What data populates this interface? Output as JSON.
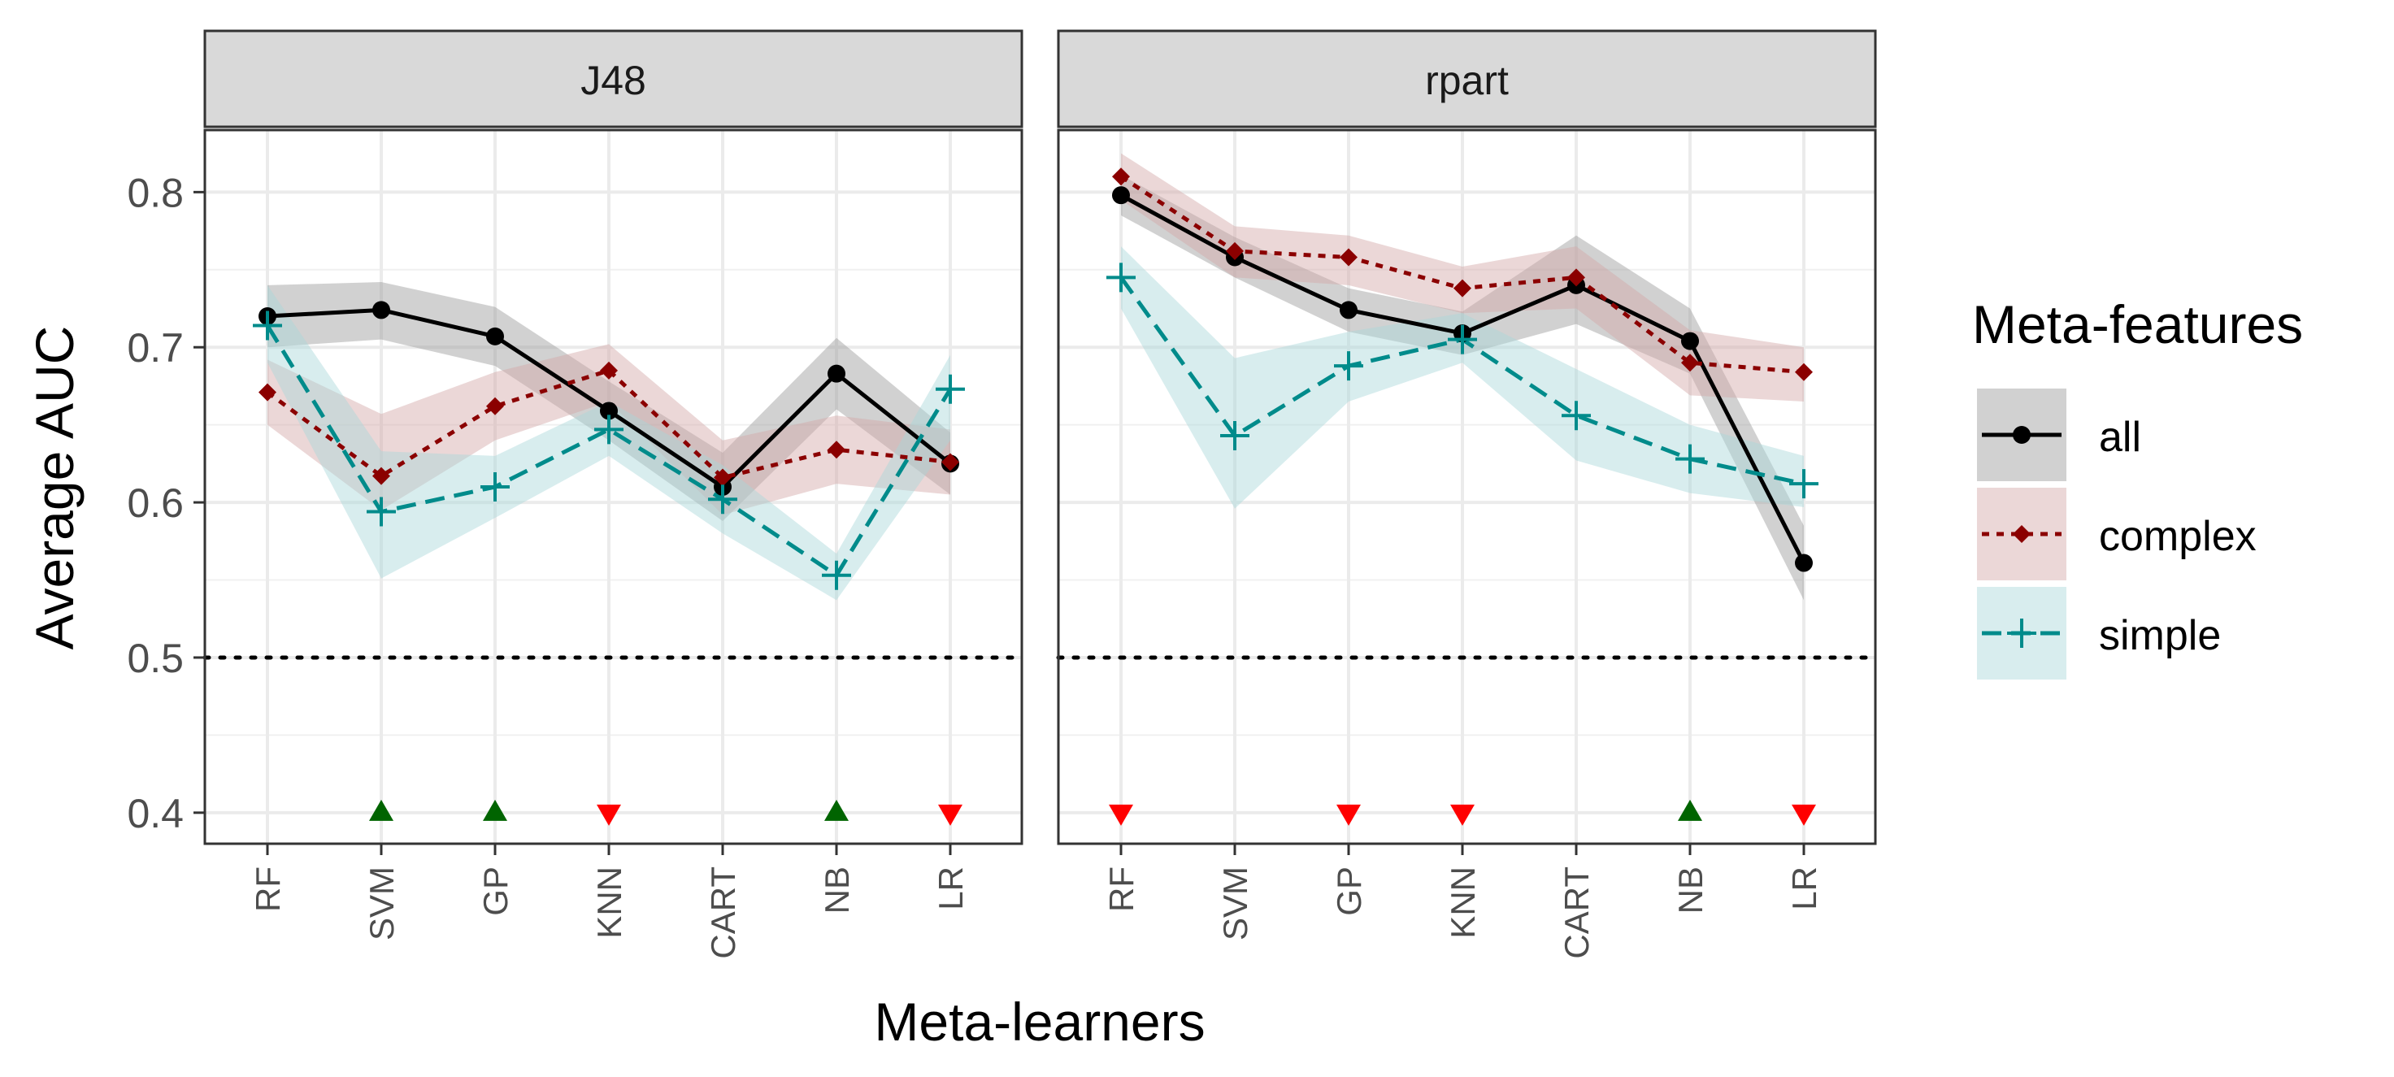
{
  "chart_data": {
    "type": "line",
    "panels": [
      "J48",
      "rpart"
    ],
    "categories": [
      "RF",
      "SVM",
      "GP",
      "KNN",
      "CART",
      "NB",
      "LR"
    ],
    "xlabel": "Meta-learners",
    "ylabel": "Average AUC",
    "ylim": [
      0.38,
      0.84
    ],
    "yticks": [
      0.4,
      0.5,
      0.6,
      0.7,
      0.8
    ],
    "ytick_labels": [
      "0.4",
      "0.5",
      "0.6",
      "0.7",
      "0.8"
    ],
    "reference_line": 0.5,
    "grid": true,
    "legend": {
      "title": "Meta-features",
      "position": "right",
      "entries": [
        "all",
        "complex",
        "simple"
      ]
    },
    "series": [
      {
        "name": "all",
        "color": "#000000",
        "fill": "#999999",
        "dash": "solid",
        "marker": "circle",
        "values": {
          "J48": [
            0.72,
            0.724,
            0.707,
            0.659,
            0.61,
            0.683,
            0.625
          ],
          "rpart": [
            0.798,
            0.758,
            0.724,
            0.709,
            0.74,
            0.704,
            0.561
          ]
        },
        "lower": {
          "J48": [
            0.7,
            0.705,
            0.688,
            0.64,
            0.588,
            0.66,
            0.605
          ],
          "rpart": [
            0.785,
            0.745,
            0.71,
            0.695,
            0.715,
            0.683,
            0.537
          ]
        },
        "upper": {
          "J48": [
            0.74,
            0.742,
            0.726,
            0.678,
            0.632,
            0.706,
            0.645
          ],
          "rpart": [
            0.811,
            0.771,
            0.738,
            0.723,
            0.772,
            0.725,
            0.585
          ]
        }
      },
      {
        "name": "complex",
        "color": "#8b0000",
        "fill": "#d2a6a6",
        "dash": "dotted",
        "marker": "diamond",
        "values": {
          "J48": [
            0.671,
            0.617,
            0.662,
            0.685,
            0.616,
            0.634,
            0.626
          ],
          "rpart": [
            0.81,
            0.762,
            0.758,
            0.738,
            0.745,
            0.69,
            0.684
          ]
        },
        "lower": {
          "J48": [
            0.65,
            0.595,
            0.64,
            0.665,
            0.592,
            0.612,
            0.605
          ],
          "rpart": [
            0.795,
            0.745,
            0.74,
            0.722,
            0.725,
            0.669,
            0.665
          ]
        },
        "upper": {
          "J48": [
            0.692,
            0.657,
            0.684,
            0.702,
            0.64,
            0.656,
            0.647
          ],
          "rpart": [
            0.825,
            0.778,
            0.772,
            0.752,
            0.765,
            0.711,
            0.7
          ]
        }
      },
      {
        "name": "simple",
        "color": "#008b8b",
        "fill": "#a8d8da",
        "dash": "dashed",
        "marker": "plus",
        "values": {
          "J48": [
            0.714,
            0.594,
            0.61,
            0.647,
            0.602,
            0.553,
            0.673
          ],
          "rpart": [
            0.745,
            0.643,
            0.688,
            0.705,
            0.656,
            0.628,
            0.612
          ]
        },
        "lower": {
          "J48": [
            0.69,
            0.551,
            0.59,
            0.63,
            0.58,
            0.537,
            0.64
          ],
          "rpart": [
            0.725,
            0.596,
            0.665,
            0.69,
            0.627,
            0.606,
            0.597
          ]
        },
        "upper": {
          "J48": [
            0.74,
            0.633,
            0.63,
            0.665,
            0.624,
            0.567,
            0.695
          ],
          "rpart": [
            0.765,
            0.693,
            0.71,
            0.722,
            0.686,
            0.65,
            0.63
          ]
        }
      }
    ],
    "significance_markers": {
      "y": 0.4,
      "up_color": "#006400",
      "down_color": "#ff0000",
      "J48": [
        null,
        "up",
        "up",
        "down",
        null,
        "up",
        "down"
      ],
      "rpart": [
        "down",
        null,
        "down",
        "down",
        null,
        "up",
        "down"
      ]
    }
  }
}
